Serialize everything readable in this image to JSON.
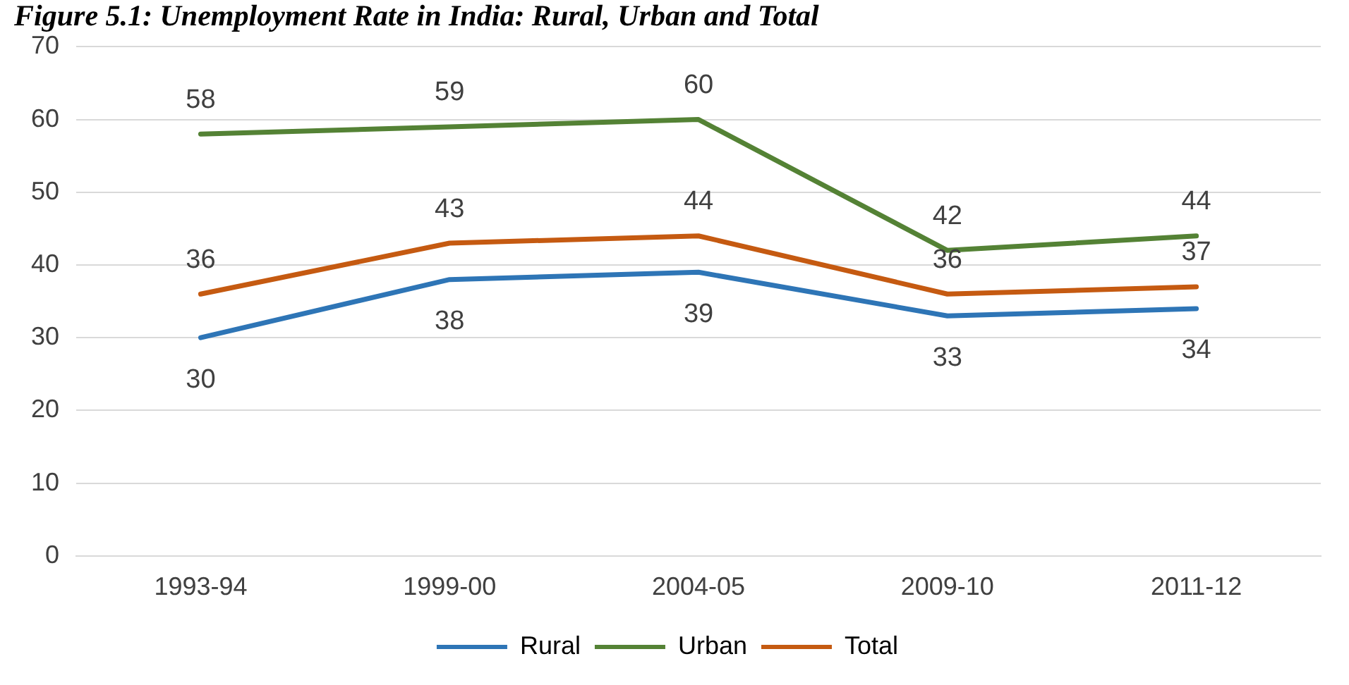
{
  "chart_data": {
    "type": "line",
    "title": "Figure 5.1: Unemployment Rate in India: Rural, Urban and Total",
    "categories": [
      "1993-94",
      "1999-00",
      "2004-05",
      "2009-10",
      "2011-12"
    ],
    "series": [
      {
        "name": "Rural",
        "color": "#2e75b6",
        "values": [
          30,
          38,
          39,
          33,
          34
        ]
      },
      {
        "name": "Urban",
        "color": "#548235",
        "values": [
          58,
          59,
          60,
          42,
          44
        ]
      },
      {
        "name": "Total",
        "color": "#c55a11",
        "values": [
          36,
          43,
          44,
          36,
          37
        ]
      }
    ],
    "ylim": [
      0,
      70
    ],
    "yticks": [
      0,
      10,
      20,
      30,
      40,
      50,
      60,
      70
    ],
    "grid": "y",
    "legend": "bottom",
    "marker": "none",
    "line_style": "solid",
    "data_labels": true
  }
}
